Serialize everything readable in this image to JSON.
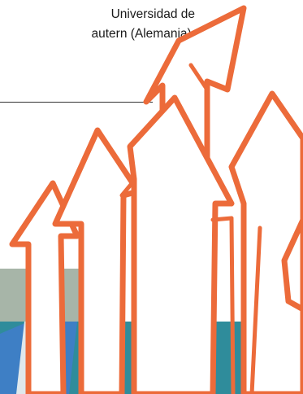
{
  "caption": {
    "line1": "Universidad de",
    "line2": "autern (Alemania)."
  },
  "colors": {
    "arrow_stroke": "#ec6b3a",
    "arrow_fill": "#ffffff",
    "band_gray": "#a7b5a8",
    "band_teal": "#2f8c9b",
    "band_blue": "#3e7fc5",
    "band_dark": "#1f4e66"
  }
}
